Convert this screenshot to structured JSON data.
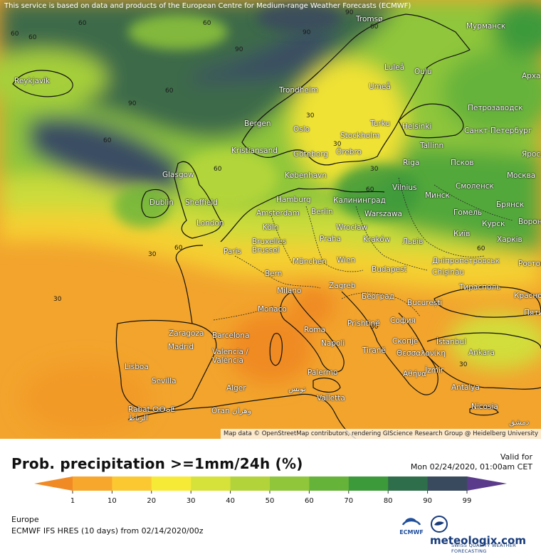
{
  "notice": "This service is based on data and products of the European Centre for Medium-range Weather Forecasts (ECMWF)",
  "attribution": "Map data © OpenStreetMap contributors, rendering GIScience Research Group @ Heidelberg University",
  "title": "Prob. precipitation >=1mm/24h (%)",
  "valid_label": "Valid for",
  "valid_time": "Mon 02/24/2020, 01:00am CET",
  "region": "Europe",
  "model_run": "ECMWF IFS HRES (10 days) from 02/14/2020/00z",
  "colorbar": {
    "ticks": [
      "1",
      "10",
      "20",
      "30",
      "40",
      "50",
      "60",
      "70",
      "80",
      "90",
      "99"
    ],
    "colors": [
      "#f08a24",
      "#f7a72c",
      "#fbc832",
      "#f7ea36",
      "#d6e23a",
      "#b3d33a",
      "#8fc63a",
      "#66b33a",
      "#3d9a3a",
      "#2f6e4a",
      "#3a4a5e",
      "#5a3a8a"
    ]
  },
  "logos": {
    "ecmwf": "ECMWF",
    "meteologix_name": "meteologix.com",
    "meteologix_slogan": "SWISS QUALITY WEATHER FORECASTING"
  },
  "cities": [
    "Reykjavík",
    "Tromsø",
    "Мурманск",
    "Luleå",
    "Oulu",
    "Арха",
    "Trondheim",
    "Umeå",
    "Петрозаводск",
    "Bergen",
    "Oslo",
    "Turku",
    "Helsinki",
    "Санкт-Петербург",
    "Stockholm",
    "Kristiansand",
    "Göteborg",
    "Örebro",
    "Tallinn",
    "Псков",
    "Яросл",
    "Glasgow",
    "København",
    "Riga",
    "Москва",
    "Vilnius",
    "Смоленск",
    "Hamburg",
    "Dublin",
    "Sheffield",
    "Калининград",
    "Минск",
    "Брянск",
    "Amsterdam",
    "Berlin",
    "Warszawa",
    "Гомель",
    "London",
    "Köln",
    "Wrocław",
    "Київ",
    "Курск",
    "Bruxelles Brussel",
    "Praha",
    "Kraków",
    "Львів",
    "Харків",
    "Paris",
    "München",
    "Wien",
    "Дніпропетровськ",
    "Bern",
    "Budapest",
    "Chișinău",
    "Milano",
    "Zagreb",
    "Тирасполь",
    "Београд",
    "Monaco",
    "București",
    "Zaragoza",
    "Barcelona",
    "Roma",
    "Prishtinë",
    "София",
    "Madrid",
    "Napoli",
    "Tiranë",
    "Скопје",
    "İstanbul",
    "Valencia / València",
    "Θεσσαλονίκη",
    "Ankara",
    "Lisboa",
    "Αθήνα",
    "İzmir",
    "Sevilla",
    "Palermo",
    "Alger",
    "تونس",
    "Valletta",
    "Antalya",
    "Rabat ⵔⴱⴰⵟ الرباط",
    "Oran وهران",
    "Nicosia",
    "دمشق",
    "Вороне",
    "Ростов",
    "Красно",
    "Пяти"
  ],
  "isolines": [
    "90",
    "60",
    "30"
  ]
}
